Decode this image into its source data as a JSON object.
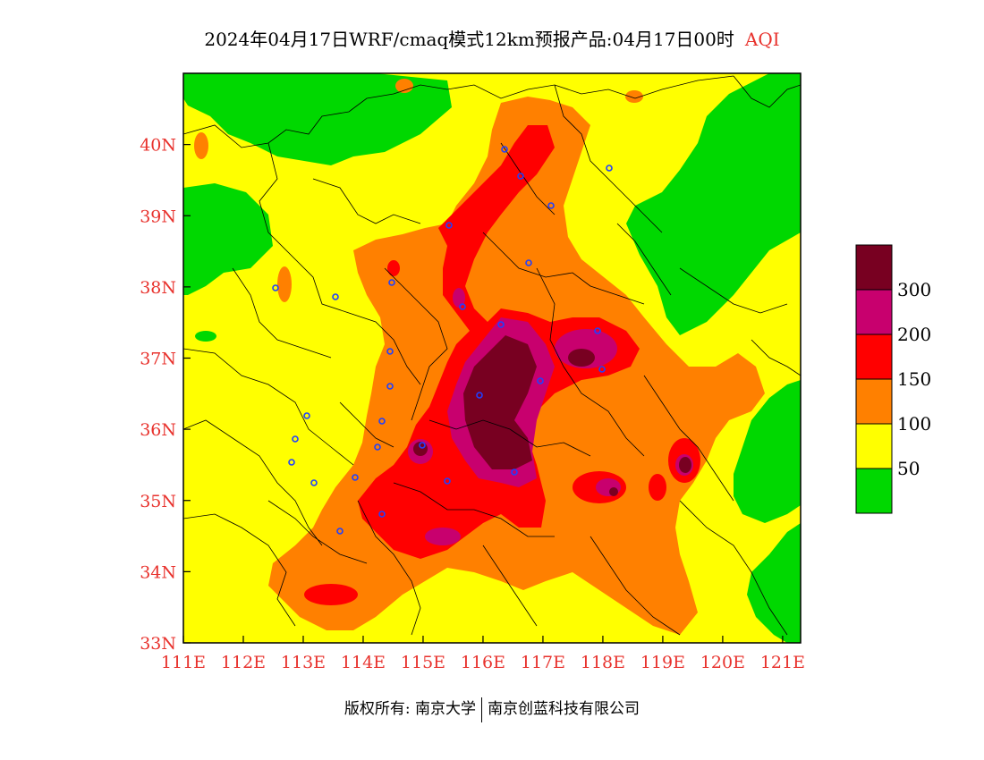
{
  "title": {
    "main": "2024年04月17日WRF/cmaq模式12km预报产品:04月17日00时",
    "variable": "AQI"
  },
  "map": {
    "lat_ticks": [
      "40N",
      "39N",
      "38N",
      "37N",
      "36N",
      "35N",
      "34N",
      "33N"
    ],
    "lon_ticks": [
      "111E",
      "112E",
      "113E",
      "114E",
      "115E",
      "116E",
      "117E",
      "118E",
      "119E",
      "120E",
      "121E"
    ],
    "extent": {
      "lon_min": 111,
      "lon_max": 121.3,
      "lat_min": 33,
      "lat_max": 41
    },
    "colors": {
      "green": "#00d800",
      "yellow": "#ffff00",
      "orange": "#ff8000",
      "red": "#ff0000",
      "magenta": "#c8006e",
      "maroon": "#780021",
      "city_marker": "#2040ff"
    }
  },
  "legend": {
    "labels": [
      "300",
      "200",
      "150",
      "100",
      "50"
    ],
    "bins": [
      {
        "color": "#780021"
      },
      {
        "color": "#c8006e"
      },
      {
        "color": "#ff0000"
      },
      {
        "color": "#ff8000"
      },
      {
        "color": "#ffff00"
      },
      {
        "color": "#00d800"
      }
    ]
  },
  "footer": {
    "copyright": "版权所有: 南京大学",
    "company": "南京创蓝科技有限公司"
  }
}
